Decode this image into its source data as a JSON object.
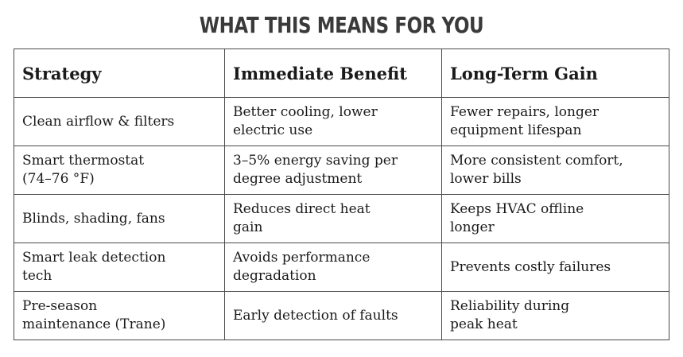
{
  "title": "WHAT THIS MEANS FOR YOU",
  "table": {
    "headers": [
      "Strategy",
      "Immediate Benefit",
      "Long-Term Gain"
    ],
    "rows": [
      [
        "Clean airflow & filters",
        "Better cooling, lower electric use",
        "Fewer repairs, longer equipment lifespan"
      ],
      [
        "Smart thermostat (74–76 °F)",
        "3–5% energy saving per degree adjustment",
        "More consistent comfort, lower bills"
      ],
      [
        "Blinds, shading, fans",
        "Reduces direct heat gain",
        "Keeps HVAC offline longer"
      ],
      [
        "Smart leak detection tech",
        "Avoids performance degradation",
        "Prevents costly failures"
      ],
      [
        "Pre-season maintenance (Trane)",
        "Early detection of faults",
        "Reliability during peak heat"
      ]
    ]
  }
}
